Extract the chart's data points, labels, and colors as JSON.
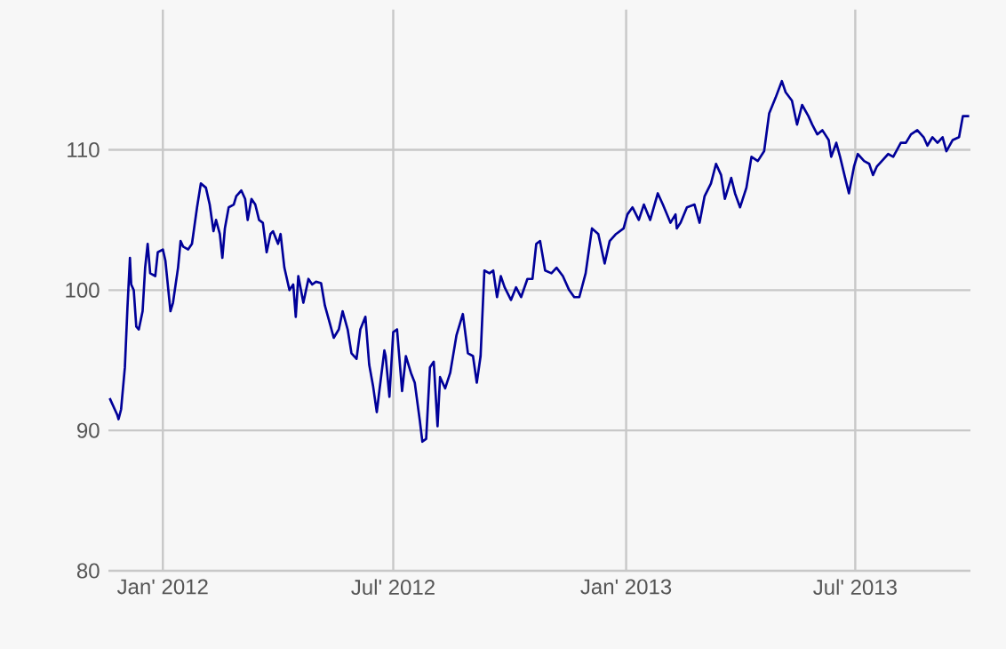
{
  "chart_data": {
    "type": "line",
    "color": "#000099",
    "line_style": "solid",
    "marker": "none",
    "grid": true,
    "xlim": [
      "2011-11-19",
      "2013-09-30"
    ],
    "ylim": [
      80,
      120
    ],
    "xticks": [
      {
        "value": "2012-01-01",
        "label": "Jan' 2012"
      },
      {
        "value": "2012-07-01",
        "label": "Jul' 2012"
      },
      {
        "value": "2013-01-01",
        "label": "Jan' 2013"
      },
      {
        "value": "2013-07-01",
        "label": "Jul' 2013"
      }
    ],
    "yticks": [
      80,
      90,
      100,
      110
    ],
    "x": [
      "2011-11-20",
      "2011-11-26",
      "2011-11-27",
      "2011-11-29",
      "2011-12-02",
      "2011-12-04",
      "2011-12-06",
      "2011-12-07",
      "2011-12-09",
      "2011-12-11",
      "2011-12-13",
      "2011-12-16",
      "2011-12-18",
      "2011-12-20",
      "2011-12-22",
      "2011-12-26",
      "2011-12-28",
      "2012-01-01",
      "2012-01-03",
      "2012-01-07",
      "2012-01-09",
      "2012-01-13",
      "2012-01-15",
      "2012-01-17",
      "2012-01-21",
      "2012-01-24",
      "2012-01-28",
      "2012-01-31",
      "2012-02-04",
      "2012-02-07",
      "2012-02-10",
      "2012-02-12",
      "2012-02-15",
      "2012-02-17",
      "2012-02-19",
      "2012-02-22",
      "2012-02-26",
      "2012-02-28",
      "2012-03-03",
      "2012-03-06",
      "2012-03-08",
      "2012-03-11",
      "2012-03-14",
      "2012-03-17",
      "2012-03-20",
      "2012-03-23",
      "2012-03-26",
      "2012-03-28",
      "2012-04-01",
      "2012-04-03",
      "2012-04-06",
      "2012-04-10",
      "2012-04-13",
      "2012-04-15",
      "2012-04-17",
      "2012-04-21",
      "2012-04-25",
      "2012-04-28",
      "2012-05-01",
      "2012-05-05",
      "2012-05-08",
      "2012-05-12",
      "2012-05-15",
      "2012-05-19",
      "2012-05-22",
      "2012-05-26",
      "2012-05-29",
      "2012-06-02",
      "2012-06-05",
      "2012-06-09",
      "2012-06-12",
      "2012-06-15",
      "2012-06-18",
      "2012-06-20",
      "2012-06-24",
      "2012-06-25",
      "2012-06-28",
      "2012-07-01",
      "2012-07-04",
      "2012-07-08",
      "2012-07-11",
      "2012-07-15",
      "2012-07-18",
      "2012-07-22",
      "2012-07-24",
      "2012-07-27",
      "2012-07-30",
      "2012-08-02",
      "2012-08-05",
      "2012-08-07",
      "2012-08-11",
      "2012-08-15",
      "2012-08-20",
      "2012-08-25",
      "2012-08-29",
      "2012-09-02",
      "2012-09-05",
      "2012-09-08",
      "2012-09-11",
      "2012-09-15",
      "2012-09-18",
      "2012-09-21",
      "2012-09-24",
      "2012-09-27",
      "2012-10-02",
      "2012-10-06",
      "2012-10-10",
      "2012-10-15",
      "2012-10-19",
      "2012-10-22",
      "2012-10-25",
      "2012-10-29",
      "2012-11-03",
      "2012-11-07",
      "2012-11-12",
      "2012-11-17",
      "2012-11-21",
      "2012-11-25",
      "2012-11-30",
      "2012-12-05",
      "2012-12-10",
      "2012-12-15",
      "2012-12-19",
      "2012-12-24",
      "2012-12-30",
      "2013-01-02",
      "2013-01-06",
      "2013-01-11",
      "2013-01-15",
      "2013-01-20",
      "2013-01-26",
      "2013-01-30",
      "2013-02-05",
      "2013-02-09",
      "2013-02-10",
      "2013-02-13",
      "2013-02-18",
      "2013-02-24",
      "2013-02-28",
      "2013-03-04",
      "2013-03-09",
      "2013-03-13",
      "2013-03-17",
      "2013-03-20",
      "2013-03-25",
      "2013-03-28",
      "2013-04-01",
      "2013-04-06",
      "2013-04-10",
      "2013-04-15",
      "2013-04-20",
      "2013-04-24",
      "2013-04-29",
      "2013-05-04",
      "2013-05-07",
      "2013-05-12",
      "2013-05-16",
      "2013-05-20",
      "2013-05-25",
      "2013-05-28",
      "2013-06-01",
      "2013-06-05",
      "2013-06-10",
      "2013-06-12",
      "2013-06-16",
      "2013-06-19",
      "2013-06-23",
      "2013-06-26",
      "2013-06-30",
      "2013-07-03",
      "2013-07-08",
      "2013-07-12",
      "2013-07-15",
      "2013-07-18",
      "2013-07-22",
      "2013-07-27",
      "2013-07-31",
      "2013-08-06",
      "2013-08-10",
      "2013-08-14",
      "2013-08-19",
      "2013-08-24",
      "2013-08-27",
      "2013-08-31",
      "2013-09-04",
      "2013-09-08",
      "2013-09-11",
      "2013-09-16",
      "2013-09-21",
      "2013-09-24",
      "2013-09-29"
    ],
    "values": [
      92.3,
      91.1,
      90.8,
      91.5,
      94.5,
      98.7,
      102.3,
      100.4,
      100.0,
      97.4,
      97.2,
      98.5,
      101.6,
      103.3,
      101.2,
      101.0,
      102.7,
      102.9,
      102.1,
      98.5,
      99.1,
      101.6,
      103.5,
      103.1,
      102.9,
      103.3,
      105.9,
      107.6,
      107.3,
      106.1,
      104.2,
      105.0,
      104.0,
      102.3,
      104.4,
      105.9,
      106.1,
      106.7,
      107.1,
      106.5,
      105.0,
      106.5,
      106.1,
      105.0,
      104.8,
      102.7,
      104.0,
      104.2,
      103.3,
      104.0,
      101.6,
      100.0,
      100.4,
      98.1,
      101.0,
      99.1,
      100.8,
      100.4,
      100.6,
      100.5,
      98.9,
      97.6,
      96.6,
      97.2,
      98.5,
      97.2,
      95.5,
      95.1,
      97.2,
      98.1,
      94.7,
      93.2,
      91.3,
      92.8,
      95.7,
      95.3,
      92.4,
      97.0,
      97.2,
      92.8,
      95.3,
      94.1,
      93.4,
      90.7,
      89.2,
      89.4,
      94.5,
      94.9,
      90.3,
      93.8,
      93.0,
      94.1,
      96.8,
      98.3,
      95.5,
      95.3,
      93.4,
      95.3,
      101.4,
      101.2,
      101.4,
      99.5,
      101.0,
      100.2,
      99.3,
      100.2,
      99.5,
      100.8,
      100.8,
      103.3,
      103.5,
      101.4,
      101.2,
      101.6,
      101.0,
      100.0,
      99.5,
      99.5,
      101.2,
      104.4,
      104.0,
      101.9,
      103.5,
      104.0,
      104.4,
      105.4,
      105.9,
      105.0,
      106.1,
      105.0,
      106.9,
      106.1,
      104.8,
      105.4,
      104.4,
      104.8,
      105.9,
      106.1,
      104.8,
      106.7,
      107.6,
      109.0,
      108.2,
      106.5,
      108.0,
      106.9,
      105.9,
      107.3,
      109.5,
      109.2,
      109.9,
      112.6,
      113.7,
      114.9,
      114.1,
      113.5,
      111.8,
      113.2,
      112.4,
      111.8,
      111.1,
      111.4,
      110.7,
      109.5,
      110.5,
      109.5,
      108.0,
      106.9,
      108.8,
      109.7,
      109.2,
      109.0,
      108.2,
      108.8,
      109.2,
      109.7,
      109.5,
      110.5,
      110.5,
      111.1,
      111.4,
      110.9,
      110.3,
      110.9,
      110.5,
      110.9,
      109.9,
      110.7,
      110.9,
      112.4,
      112.4
    ]
  }
}
